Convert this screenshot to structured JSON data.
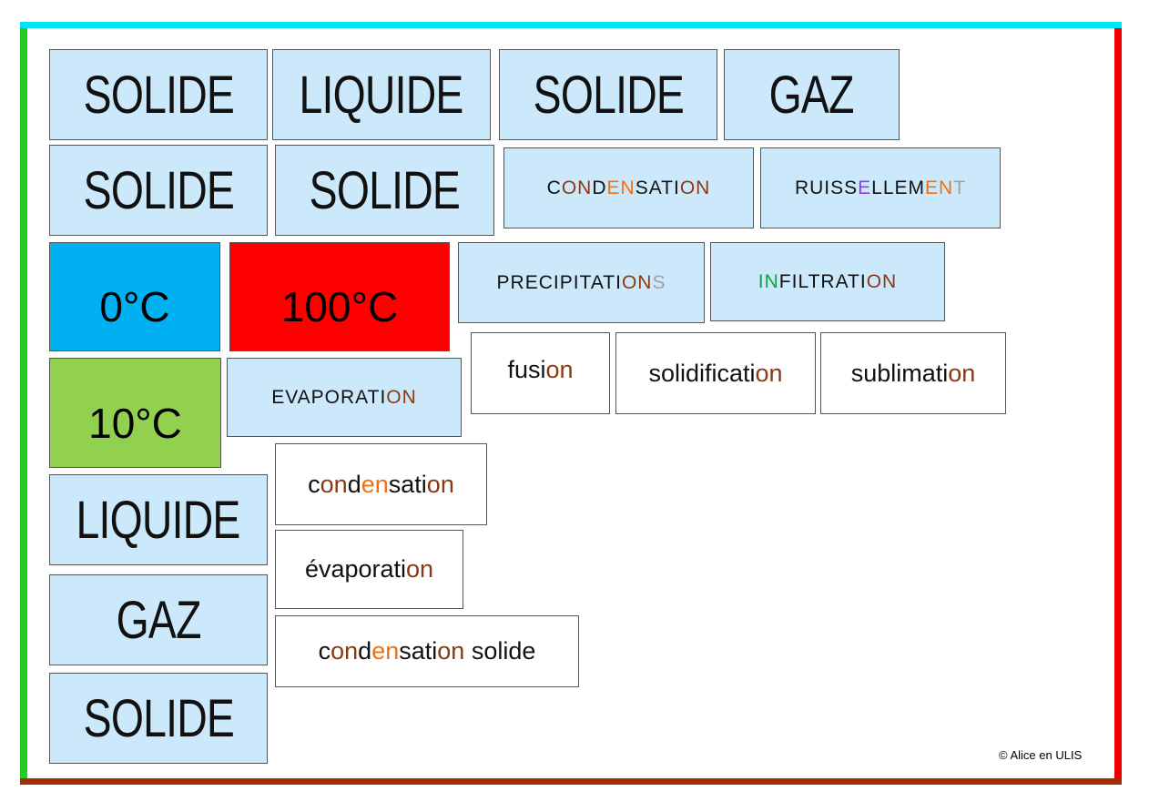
{
  "colors": {
    "top_border": "#00e5f0",
    "left_border": "#22cc22",
    "right_border": "#ee0000",
    "bottom_border": "#a0300a",
    "card_blue": "#cce9fb",
    "temp_0": "#00b0f0",
    "temp_100": "#ff0000",
    "temp_10": "#92d050",
    "brown": "#8a3a12",
    "orange": "#f07010",
    "purple": "#8844dd",
    "gray": "#a0a0a0",
    "green": "#10a040"
  },
  "cards": [
    {
      "kind": "big",
      "segs": [
        {
          "t": "SOLIDE"
        }
      ]
    },
    {
      "kind": "big",
      "segs": [
        {
          "t": "LIQUIDE"
        }
      ]
    },
    {
      "kind": "big",
      "segs": [
        {
          "t": "SOLIDE"
        }
      ]
    },
    {
      "kind": "big",
      "segs": [
        {
          "t": "GAZ"
        }
      ]
    },
    {
      "kind": "big",
      "segs": [
        {
          "t": "SOLIDE"
        }
      ]
    },
    {
      "kind": "big",
      "segs": [
        {
          "t": "SOLIDE"
        }
      ]
    },
    {
      "kind": "caps",
      "segs": [
        {
          "t": "C"
        },
        {
          "t": "ON",
          "c": "#8a3a12"
        },
        {
          "t": "D"
        },
        {
          "t": "EN",
          "c": "#f07010"
        },
        {
          "t": "SATI"
        },
        {
          "t": "ON",
          "c": "#8a3a12"
        }
      ]
    },
    {
      "kind": "caps",
      "segs": [
        {
          "t": "RUISS"
        },
        {
          "t": "E",
          "c": "#8844dd"
        },
        {
          "t": "LLEM"
        },
        {
          "t": "EN",
          "c": "#f07010"
        },
        {
          "t": "T",
          "c": "#a0a0a0"
        }
      ]
    },
    {
      "kind": "temp",
      "segs": [
        {
          "t": "0°C"
        }
      ]
    },
    {
      "kind": "temp",
      "segs": [
        {
          "t": "100°C"
        }
      ]
    },
    {
      "kind": "caps",
      "segs": [
        {
          "t": "PRECIPITATI"
        },
        {
          "t": "ON",
          "c": "#8a3a12"
        },
        {
          "t": "S",
          "c": "#a0a0a0"
        }
      ]
    },
    {
      "kind": "caps",
      "segs": [
        {
          "t": "IN",
          "c": "#10a040"
        },
        {
          "t": "FILTRATI"
        },
        {
          "t": "ON",
          "c": "#8a3a12"
        }
      ]
    },
    {
      "kind": "low",
      "segs": [
        {
          "t": "fusi"
        },
        {
          "t": "on",
          "c": "#8a3a12"
        }
      ]
    },
    {
      "kind": "low",
      "segs": [
        {
          "t": "solidificati"
        },
        {
          "t": "on",
          "c": "#8a3a12"
        }
      ]
    },
    {
      "kind": "low",
      "segs": [
        {
          "t": "sublimati"
        },
        {
          "t": "on",
          "c": "#8a3a12"
        }
      ]
    },
    {
      "kind": "temp",
      "segs": [
        {
          "t": "10°C"
        }
      ]
    },
    {
      "kind": "caps",
      "segs": [
        {
          "t": "EVAPORATI"
        },
        {
          "t": "ON",
          "c": "#8a3a12"
        }
      ]
    },
    {
      "kind": "low",
      "segs": [
        {
          "t": "c"
        },
        {
          "t": "on",
          "c": "#8a3a12"
        },
        {
          "t": "d"
        },
        {
          "t": "en",
          "c": "#f07010"
        },
        {
          "t": "sati"
        },
        {
          "t": "on",
          "c": "#8a3a12"
        }
      ]
    },
    {
      "kind": "big",
      "segs": [
        {
          "t": "LIQUIDE"
        }
      ]
    },
    {
      "kind": "low",
      "segs": [
        {
          "t": "évaporati"
        },
        {
          "t": "on",
          "c": "#8a3a12"
        }
      ]
    },
    {
      "kind": "big",
      "segs": [
        {
          "t": "GAZ"
        }
      ]
    },
    {
      "kind": "low",
      "segs": [
        {
          "t": "c"
        },
        {
          "t": "on",
          "c": "#8a3a12"
        },
        {
          "t": "d"
        },
        {
          "t": "en",
          "c": "#f07010"
        },
        {
          "t": "sati"
        },
        {
          "t": "on",
          "c": "#8a3a12"
        },
        {
          "t": " solide"
        }
      ]
    },
    {
      "kind": "big",
      "segs": [
        {
          "t": "SOLIDE"
        }
      ]
    }
  ],
  "copyright": "© Alice en ULIS"
}
